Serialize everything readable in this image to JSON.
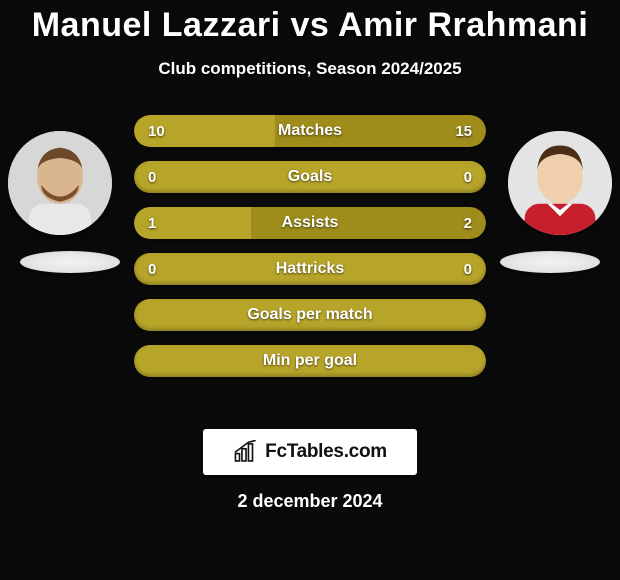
{
  "title": {
    "player_left": "Manuel Lazzari",
    "vs": "vs",
    "player_right": "Amir Rrahmani",
    "color": "#ffffff",
    "fontsize": 34,
    "fontweight": 900
  },
  "subtitle": {
    "text": "Club competitions, Season 2024/2025",
    "fontsize": 17,
    "color": "#ffffff"
  },
  "palette": {
    "background": "#0a0a0a",
    "title_color": "#ffffff",
    "left_accent": "#b7a52a",
    "right_accent": "#a8971f",
    "bar_full": "#b7a52a",
    "text_on_bar": "#ffffff"
  },
  "avatars": {
    "left": {
      "skin": "#d9b68e",
      "hair": "#6e4a2a",
      "beard": "#7a4f2d",
      "shirt": "#e8e8e8"
    },
    "right": {
      "skin": "#f0cfae",
      "hair": "#4a2e16",
      "shirt": "#c81f2d",
      "collar": "#ffffff"
    }
  },
  "bars": {
    "height": 32,
    "radius": 16,
    "gap": 14,
    "label_fontsize": 16,
    "value_fontsize": 15,
    "items": [
      {
        "label": "Matches",
        "left_val": "10",
        "right_val": "15",
        "left_num": 10,
        "right_num": 15,
        "left_color": "#b7a52a",
        "right_color": "#9e8d1b"
      },
      {
        "label": "Goals",
        "left_val": "0",
        "right_val": "0",
        "left_num": 0,
        "right_num": 0,
        "left_color": "#b7a52a",
        "right_color": "#9e8d1b"
      },
      {
        "label": "Assists",
        "left_val": "1",
        "right_val": "2",
        "left_num": 1,
        "right_num": 2,
        "left_color": "#b7a52a",
        "right_color": "#9e8d1b"
      },
      {
        "label": "Hattricks",
        "left_val": "0",
        "right_val": "0",
        "left_num": 0,
        "right_num": 0,
        "left_color": "#b7a52a",
        "right_color": "#9e8d1b"
      },
      {
        "label": "Goals per match",
        "left_val": "",
        "right_val": "",
        "left_num": 0,
        "right_num": 0,
        "left_color": "#b7a52a",
        "right_color": "#b7a52a",
        "full": true
      },
      {
        "label": "Min per goal",
        "left_val": "",
        "right_val": "",
        "left_num": 0,
        "right_num": 0,
        "left_color": "#b7a52a",
        "right_color": "#b7a52a",
        "full": true
      }
    ]
  },
  "brand": {
    "text": "FcTables.com",
    "background": "#ffffff",
    "text_color": "#111111",
    "icon_color": "#111111"
  },
  "date": {
    "text": "2 december 2024",
    "fontsize": 18,
    "color": "#ffffff"
  }
}
